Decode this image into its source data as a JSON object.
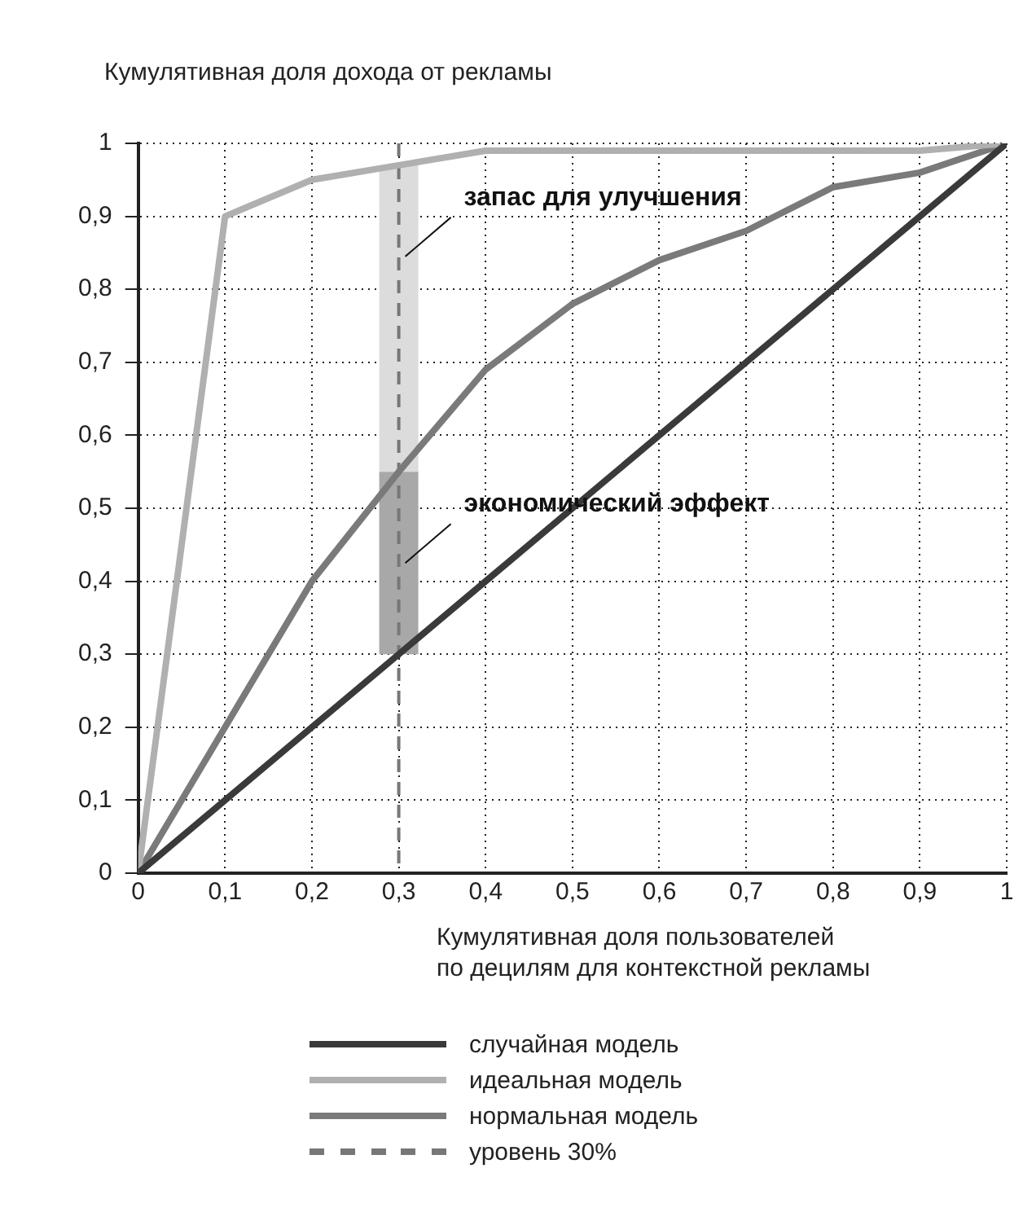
{
  "chart_data": {
    "type": "line",
    "ylabel": "Кумулятивная доля дохода от рекламы",
    "xlabel": "Кумулятивная доля пользователей\nпо децилям для контекстной рекламы",
    "x": [
      0,
      0.1,
      0.2,
      0.3,
      0.4,
      0.5,
      0.6,
      0.7,
      0.8,
      0.9,
      1
    ],
    "series": [
      {
        "name": "случайная модель",
        "color": "#3a3a3a",
        "values": [
          0,
          0.1,
          0.2,
          0.3,
          0.4,
          0.5,
          0.6,
          0.7,
          0.8,
          0.9,
          1
        ]
      },
      {
        "name": "идеальная модель",
        "color": "#b0b0b0",
        "values": [
          0,
          0.9,
          0.95,
          0.97,
          0.99,
          0.99,
          0.99,
          0.99,
          0.99,
          0.99,
          1
        ]
      },
      {
        "name": "нормальная модель",
        "color": "#7a7a7a",
        "values": [
          0,
          0.2,
          0.4,
          0.55,
          0.69,
          0.78,
          0.84,
          0.88,
          0.94,
          0.96,
          1
        ]
      }
    ],
    "ref_lines": [
      {
        "axis": "x",
        "value": 0.3,
        "label": "уровень 30%",
        "color": "#777777",
        "line_style": "dashed"
      }
    ],
    "bands": [
      {
        "axis": "y",
        "from": 0.55,
        "to": 0.97,
        "label": "запас для улучшения",
        "color": "#dcdcdc"
      },
      {
        "axis": "y",
        "from": 0.3,
        "to": 0.55,
        "label": "экономический эффект",
        "color": "#a8a8a8"
      }
    ],
    "xlim": [
      0,
      1
    ],
    "ylim": [
      0,
      1
    ],
    "xticks": [
      0,
      {
        "value": 0.1,
        "label": "0,1"
      },
      {
        "value": 0.2,
        "label": "0,2"
      },
      {
        "value": 0.3,
        "label": "0,3"
      },
      {
        "value": 0.4,
        "label": "0,4"
      },
      {
        "value": 0.5,
        "label": "0,5"
      },
      {
        "value": 0.6,
        "label": "0,6"
      },
      {
        "value": 0.7,
        "label": "0,7"
      },
      {
        "value": 0.8,
        "label": "0,8"
      },
      {
        "value": 0.9,
        "label": "0,9"
      },
      1
    ],
    "yticks": [
      0,
      {
        "value": 0.1,
        "label": "0,1"
      },
      {
        "value": 0.2,
        "label": "0,2"
      },
      {
        "value": 0.3,
        "label": "0,3"
      },
      {
        "value": 0.4,
        "label": "0,4"
      },
      {
        "value": 0.5,
        "label": "0,5"
      },
      {
        "value": 0.6,
        "label": "0,6"
      },
      {
        "value": 0.7,
        "label": "0,7"
      },
      {
        "value": 0.8,
        "label": "0,8"
      },
      {
        "value": 0.9,
        "label": "0,9"
      },
      1
    ],
    "grid": true,
    "legend": "bottom",
    "marker": "none",
    "line_style": "solid"
  }
}
